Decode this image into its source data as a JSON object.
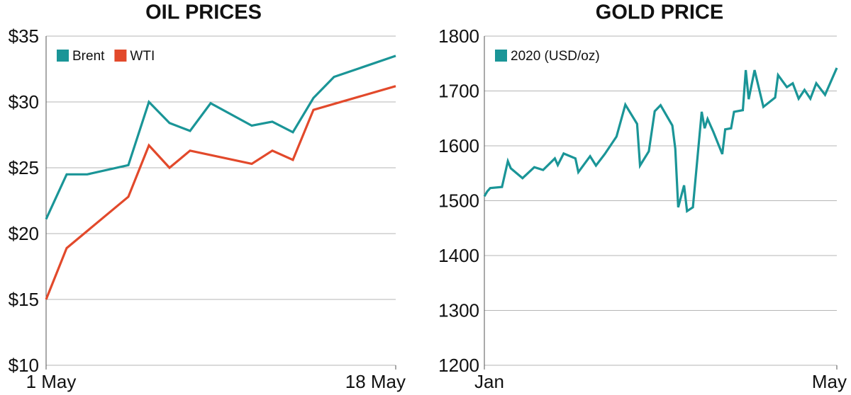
{
  "chart_data": [
    {
      "type": "line",
      "title": "OIL PRICES",
      "xlim": [
        1,
        18
      ],
      "xticks": [
        {
          "value": 1,
          "label": "1 May"
        },
        {
          "value": 18,
          "label": "18 May"
        }
      ],
      "ylim": [
        10,
        35
      ],
      "yticks": [
        {
          "value": 10,
          "label": "$10"
        },
        {
          "value": 15,
          "label": "$15"
        },
        {
          "value": 20,
          "label": "$20"
        },
        {
          "value": 25,
          "label": "$25"
        },
        {
          "value": 30,
          "label": "$30"
        },
        {
          "value": 35,
          "label": "$35"
        }
      ],
      "grid": true,
      "legend": "top-left",
      "series": [
        {
          "name": "Brent",
          "color": "#1a9597",
          "x": [
            1,
            2,
            3,
            5,
            6,
            7,
            8,
            9,
            11,
            12,
            13,
            14,
            15,
            18
          ],
          "values": [
            21.1,
            24.5,
            24.5,
            25.2,
            30.0,
            28.4,
            27.8,
            29.9,
            28.2,
            28.5,
            27.7,
            30.3,
            31.9,
            33.5
          ]
        },
        {
          "name": "WTI",
          "color": "#e2492b",
          "x": [
            1,
            2,
            5,
            6,
            7,
            8,
            11,
            12,
            13,
            14,
            18
          ],
          "values": [
            15.0,
            18.9,
            22.8,
            26.7,
            25.0,
            26.3,
            25.3,
            26.3,
            25.6,
            29.4,
            31.2
          ]
        }
      ]
    },
    {
      "type": "line",
      "title": "GOLD PRICE",
      "xlim": [
        0,
        120
      ],
      "xticks": [
        {
          "value": 0,
          "label": "Jan"
        },
        {
          "value": 120,
          "label": "May"
        }
      ],
      "ylim": [
        1200,
        1800
      ],
      "yticks": [
        1200,
        1300,
        1400,
        1500,
        1600,
        1700,
        1800
      ],
      "grid": true,
      "legend": "top-left",
      "series": [
        {
          "name": "2020 (USD/oz)",
          "color": "#1a9597",
          "x": [
            0,
            1,
            2,
            6,
            8,
            9,
            13,
            17,
            20,
            24,
            25,
            27,
            31,
            32,
            36,
            38,
            41,
            45,
            48,
            52,
            53,
            56,
            58,
            60,
            64,
            65,
            66,
            68,
            69,
            71,
            74,
            75,
            76,
            78,
            81,
            82,
            84,
            85,
            88,
            89,
            90,
            92,
            95,
            99,
            100,
            103,
            105,
            107,
            109,
            111,
            113,
            116,
            120
          ],
          "values": [
            1508,
            1517,
            1523,
            1525,
            1572,
            1559,
            1541,
            1561,
            1556,
            1577,
            1565,
            1586,
            1577,
            1552,
            1581,
            1564,
            1585,
            1617,
            1675,
            1640,
            1564,
            1590,
            1663,
            1674,
            1637,
            1595,
            1488,
            1528,
            1481,
            1488,
            1662,
            1632,
            1649,
            1625,
            1585,
            1630,
            1632,
            1662,
            1665,
            1738,
            1685,
            1738,
            1671,
            1688,
            1729,
            1707,
            1714,
            1686,
            1702,
            1686,
            1714,
            1693,
            1742
          ]
        }
      ]
    }
  ]
}
